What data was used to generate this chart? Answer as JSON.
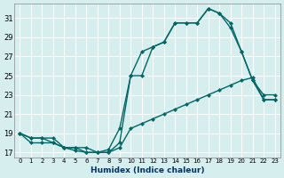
{
  "xlabel": "Humidex (Indice chaleur)",
  "background_color": "#d6eeee",
  "grid_color": "#ffffff",
  "line_color": "#006666",
  "x_ticks": [
    0,
    1,
    2,
    3,
    4,
    5,
    6,
    7,
    8,
    9,
    10,
    11,
    12,
    13,
    14,
    15,
    16,
    17,
    18,
    19,
    20,
    21,
    22,
    23
  ],
  "y_ticks": [
    17,
    19,
    21,
    23,
    25,
    27,
    29,
    31
  ],
  "xlim": [
    -0.5,
    23.5
  ],
  "ylim": [
    16.5,
    32.5
  ],
  "line1_x": [
    0,
    1,
    2,
    3,
    4,
    5,
    6,
    7,
    8,
    9,
    10,
    11,
    12,
    13,
    14,
    15,
    16,
    17,
    18,
    19,
    20,
    21,
    22,
    23
  ],
  "line1_y": [
    19.0,
    18.0,
    18.0,
    18.0,
    17.5,
    17.5,
    17.5,
    17.0,
    17.0,
    17.5,
    19.5,
    20.0,
    20.5,
    21.0,
    21.5,
    22.0,
    22.5,
    23.0,
    23.5,
    24.0,
    24.5,
    24.8,
    22.5,
    22.5
  ],
  "line2_x": [
    0,
    1,
    2,
    3,
    4,
    5,
    6,
    7,
    8,
    9,
    10,
    11,
    12,
    13,
    14,
    15,
    16,
    17,
    18,
    19,
    20,
    21,
    22,
    23
  ],
  "line2_y": [
    19.0,
    18.5,
    18.5,
    18.5,
    17.5,
    17.5,
    17.0,
    17.0,
    17.3,
    19.5,
    25.0,
    25.0,
    28.0,
    28.5,
    30.5,
    30.5,
    30.5,
    32.0,
    31.5,
    30.5,
    27.5,
    24.5,
    23.0,
    23.0
  ],
  "line3_x": [
    0,
    1,
    2,
    3,
    4,
    5,
    6,
    7,
    8,
    9,
    10,
    11,
    12,
    13,
    14,
    15,
    16,
    17,
    18,
    19,
    20,
    21,
    22,
    23
  ],
  "line3_y": [
    19.0,
    18.5,
    18.5,
    18.0,
    17.5,
    17.2,
    17.0,
    17.0,
    17.0,
    18.0,
    25.0,
    27.5,
    28.0,
    28.5,
    30.5,
    30.5,
    30.5,
    32.0,
    31.5,
    30.0,
    27.5,
    24.5,
    22.5,
    22.5
  ]
}
